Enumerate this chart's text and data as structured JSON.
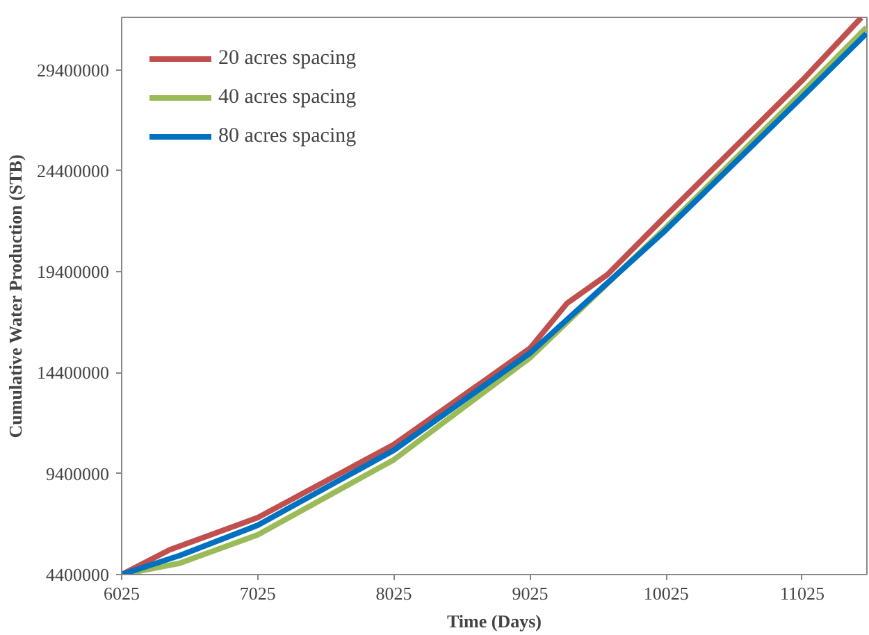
{
  "chart_data": {
    "type": "line",
    "xlabel": "Time (Days)",
    "ylabel": "Cumulative Water Production (STB)",
    "xlim": [
      6025,
      11500
    ],
    "ylim": [
      4400000,
      32000000
    ],
    "xticks": [
      6025,
      7025,
      8025,
      9025,
      10025,
      11025
    ],
    "yticks": [
      4400000,
      9400000,
      14400000,
      19400000,
      24400000,
      29400000
    ],
    "grid": false,
    "legend": "top left",
    "marker": "none",
    "line_style": "solid",
    "series": [
      {
        "name": "20 acres spacing",
        "color": "#c0504d",
        "x": [
          6025,
          6376,
          7025,
          8025,
          8705,
          9025,
          9297,
          9592,
          10025,
          11025,
          11459
        ],
        "values": [
          4400000,
          5620000,
          7220000,
          10840000,
          14080000,
          15610000,
          17840000,
          19250000,
          22190000,
          28880000,
          31990000
        ]
      },
      {
        "name": "40 acres spacing",
        "color": "#9bbb59",
        "x": [
          6025,
          6450,
          7025,
          8025,
          9025,
          10025,
          11025,
          11496
        ],
        "values": [
          4400000,
          4960000,
          6370000,
          10090000,
          15140000,
          21600000,
          28300000,
          31500000
        ]
      },
      {
        "name": "80 acres spacing",
        "color": "#0070c0",
        "x": [
          6025,
          6450,
          7025,
          8025,
          9025,
          10025,
          11025,
          11496
        ],
        "values": [
          4400000,
          5340000,
          6840000,
          10560000,
          15370000,
          21480000,
          28060000,
          31200000
        ]
      }
    ]
  }
}
